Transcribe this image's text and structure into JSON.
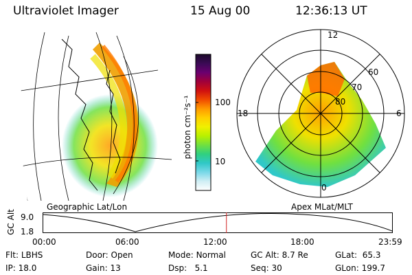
{
  "header": {
    "instrument": "Ultraviolet Imager",
    "date": "15 Aug 00",
    "time": "12:36:13 UT"
  },
  "colorbar": {
    "unit_label": "photon cm⁻²s⁻¹",
    "tick_labels": [
      "100",
      "10"
    ],
    "stops": [
      "#1c0a2a",
      "#3b0a55",
      "#6a0070",
      "#a0003a",
      "#d01010",
      "#f04a00",
      "#ff9a00",
      "#ffd000",
      "#f0f000",
      "#b8f000",
      "#70e040",
      "#30d080",
      "#30c8c8",
      "#7ad8e8",
      "#d0eef4",
      "#ffffff"
    ]
  },
  "left_panel": {
    "label": "Geographic Lat/Lon"
  },
  "right_panel": {
    "label": "Apex  MLat/MLT",
    "mlt_labels": {
      "top": "12",
      "left": "18",
      "right": "6",
      "bottom": "0"
    },
    "lat_labels": [
      "60",
      "70",
      "80"
    ]
  },
  "altitude_plot": {
    "ylabel": "GC Alt",
    "y_ticks": [
      "9.0",
      "1.8"
    ],
    "x_ticks": [
      "00:00",
      "06:00",
      "12:00",
      "18:00",
      "23:59"
    ],
    "current_time_marker_hours": 12.6
  },
  "info": {
    "filter": {
      "label": "Flt:",
      "value": "LBHS"
    },
    "ip": {
      "label": "IP:",
      "value": "18.0"
    },
    "door": {
      "label": "Door:",
      "value": "Open"
    },
    "gain": {
      "label": "Gain:",
      "value": "13"
    },
    "mode": {
      "label": "Mode:",
      "value": "Normal"
    },
    "dsp": {
      "label": "Dsp:",
      "value": "5.1"
    },
    "gc_alt": {
      "label": "GC Alt:",
      "value": "8.7 Re"
    },
    "seq": {
      "label": "Seq:",
      "value": "30"
    },
    "glat": {
      "label": "GLat:",
      "value": "65.3"
    },
    "glon": {
      "label": "GLon:",
      "value": "199.7"
    }
  },
  "colors": {
    "marker": "#d02020",
    "line": "#000000"
  }
}
